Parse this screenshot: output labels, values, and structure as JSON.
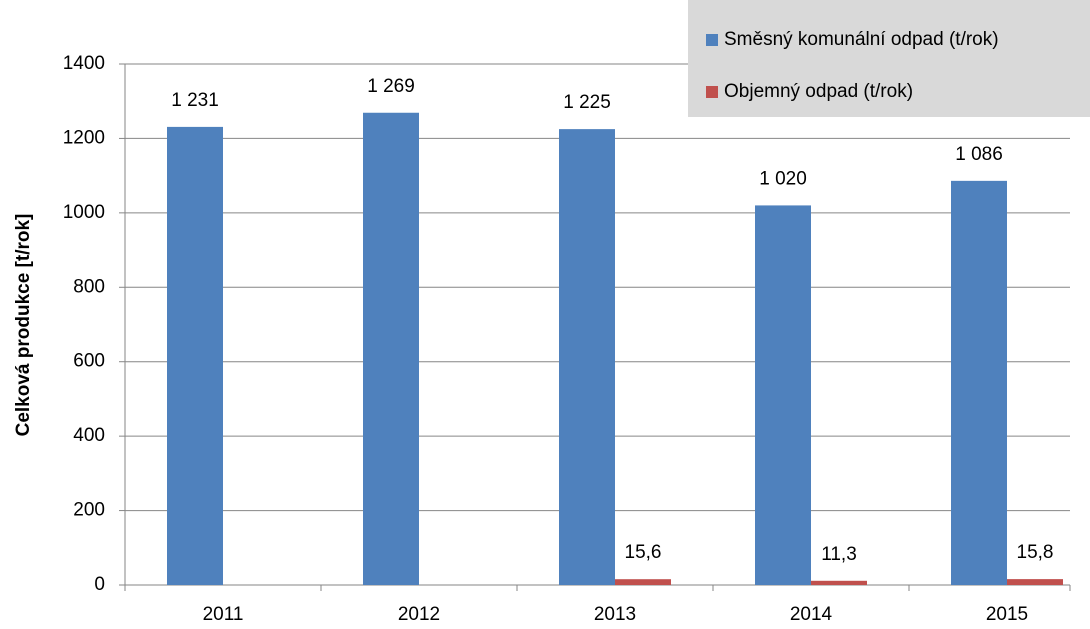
{
  "chart_data": {
    "type": "bar",
    "y_axis_label": "Celková produkce [t/rok]",
    "categories": [
      "2011",
      "2012",
      "2013",
      "2014",
      "2015"
    ],
    "series": [
      {
        "name": "Směsný komunální odpad (t/rok)",
        "color": "#4f81bd",
        "values": [
          1231,
          1269,
          1225,
          1020,
          1086
        ],
        "value_labels": [
          "1 231",
          "1 269",
          "1 225",
          "1 020",
          "1 086"
        ]
      },
      {
        "name": "Objemný odpad (t/rok)",
        "color": "#c0504d",
        "values": [
          null,
          null,
          15.6,
          11.3,
          15.8
        ],
        "value_labels": [
          null,
          null,
          "15,6",
          "11,3",
          "15,8"
        ]
      }
    ],
    "ylim": [
      0,
      1400
    ],
    "yticks": [
      0,
      200,
      400,
      600,
      800,
      1000,
      1200,
      1400
    ],
    "grid": true,
    "legend": "top-right"
  }
}
